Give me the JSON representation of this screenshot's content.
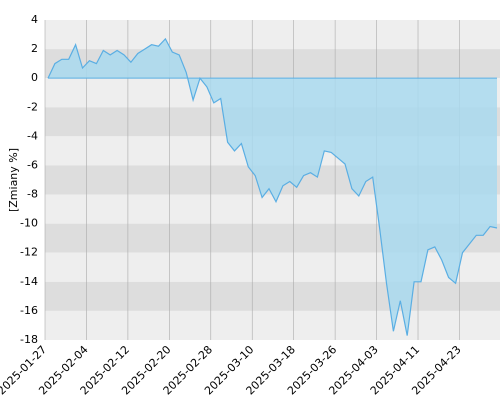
{
  "chart_data": {
    "type": "area",
    "ylabel": "[Zmiany %]",
    "categories": [
      "2025-01-27",
      null,
      null,
      null,
      null,
      null,
      "2025-02-04",
      null,
      null,
      null,
      null,
      null,
      "2025-02-12",
      null,
      null,
      null,
      null,
      null,
      "2025-02-20",
      null,
      null,
      null,
      null,
      null,
      "2025-02-28",
      null,
      null,
      null,
      null,
      null,
      "2025-03-10",
      null,
      null,
      null,
      null,
      null,
      "2025-03-18",
      null,
      null,
      null,
      null,
      null,
      "2025-03-26",
      null,
      null,
      null,
      null,
      null,
      "2025-04-03",
      null,
      null,
      null,
      null,
      null,
      "2025-04-11",
      null,
      null,
      null,
      null,
      null,
      "2025-04-23",
      null,
      null,
      null,
      null,
      null
    ],
    "values": [
      0,
      1.0,
      1.3,
      1.3,
      2.3,
      0.7,
      1.2,
      1.0,
      1.9,
      1.6,
      1.9,
      1.6,
      1.1,
      1.7,
      2.0,
      2.3,
      2.2,
      2.7,
      1.8,
      1.6,
      0.4,
      -1.5,
      0,
      -0.6,
      -1.7,
      -1.4,
      -4.4,
      -5.0,
      -4.5,
      -6.1,
      -6.7,
      -8.2,
      -7.6,
      -8.5,
      -7.4,
      -7.1,
      -7.5,
      -6.7,
      -6.5,
      -6.8,
      -5.0,
      -5.1,
      -5.5,
      -5.9,
      -7.6,
      -8.1,
      -7.1,
      -6.8,
      -10.3,
      -14.1,
      -17.4,
      -15.3,
      -17.7,
      -14.0,
      -14.0,
      -11.8,
      -11.6,
      -12.5,
      -13.7,
      -14.1,
      -12.0,
      -11.4,
      -10.8,
      -10.8,
      -10.2,
      -10.3
    ],
    "color": "#5aaee3",
    "fill_color": "#a9d9ee",
    "ylim": [
      -18,
      4
    ],
    "yticks": [
      4,
      2,
      0,
      -2,
      -4,
      -6,
      -8,
      -10,
      -12,
      -14,
      -16,
      -18
    ],
    "grid": true,
    "band_colors": [
      "#eeeeee",
      "#dddddd"
    ]
  }
}
